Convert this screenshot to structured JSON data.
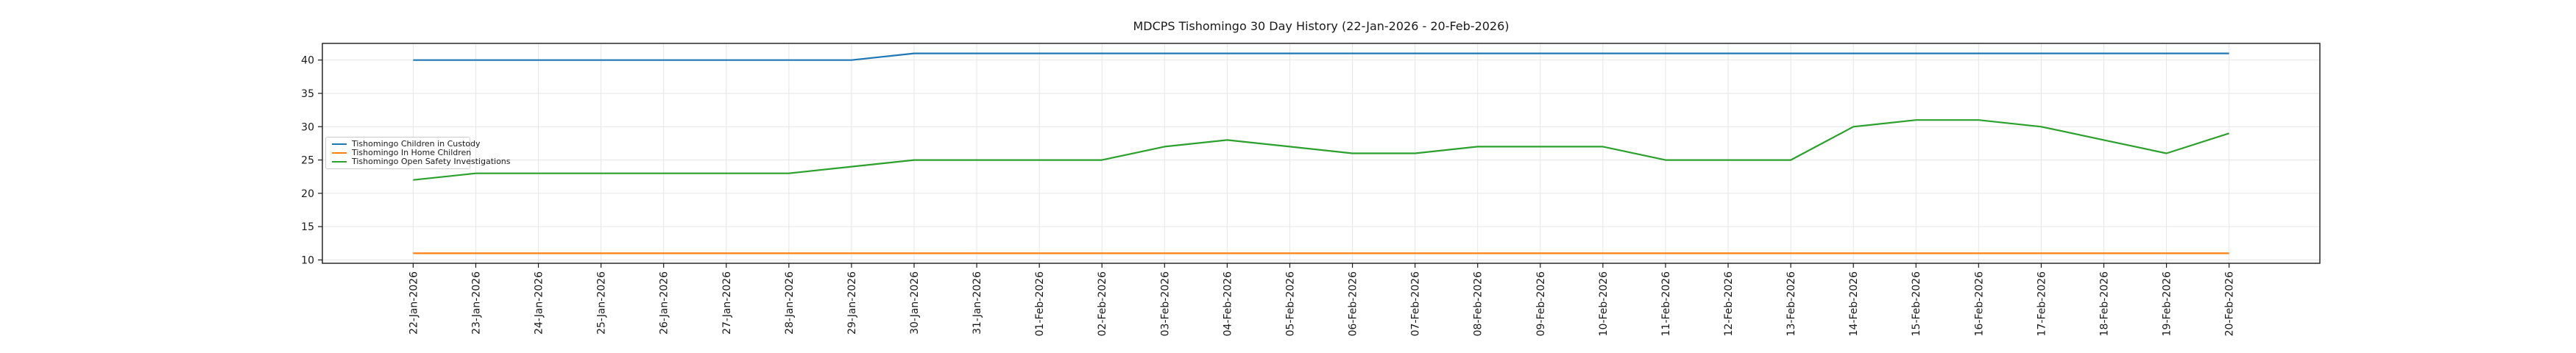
{
  "figure": {
    "title": "MDCPS Tishomingo 30 Day History (22-Jan-2026 - 20-Feb-2026)",
    "background_color": "#ffffff",
    "grid_color": "#e6e6e6",
    "spine_color": "#1a1a1a",
    "tick_label_color": "#1a1a1a"
  },
  "chart_data": {
    "type": "line",
    "title": "MDCPS Tishomingo 30 Day History (22-Jan-2026 - 20-Feb-2026)",
    "xlabel": "",
    "ylabel": "",
    "grid": true,
    "legend_position": "center left",
    "ylim": [
      9.5,
      42.5
    ],
    "yticks": [
      10,
      15,
      20,
      25,
      30,
      35,
      40
    ],
    "categories": [
      "22-Jan-2026",
      "23-Jan-2026",
      "24-Jan-2026",
      "25-Jan-2026",
      "26-Jan-2026",
      "27-Jan-2026",
      "28-Jan-2026",
      "29-Jan-2026",
      "30-Jan-2026",
      "31-Jan-2026",
      "01-Feb-2026",
      "02-Feb-2026",
      "03-Feb-2026",
      "04-Feb-2026",
      "05-Feb-2026",
      "06-Feb-2026",
      "07-Feb-2026",
      "08-Feb-2026",
      "09-Feb-2026",
      "10-Feb-2026",
      "11-Feb-2026",
      "12-Feb-2026",
      "13-Feb-2026",
      "14-Feb-2026",
      "15-Feb-2026",
      "16-Feb-2026",
      "17-Feb-2026",
      "18-Feb-2026",
      "19-Feb-2026",
      "20-Feb-2026"
    ],
    "series": [
      {
        "name": "Tishomingo Children in Custody",
        "color": "#1f77b4",
        "values": [
          40,
          40,
          40,
          40,
          40,
          40,
          40,
          40,
          41,
          41,
          41,
          41,
          41,
          41,
          41,
          41,
          41,
          41,
          41,
          41,
          41,
          41,
          41,
          41,
          41,
          41,
          41,
          41,
          41,
          41
        ]
      },
      {
        "name": "Tishomingo In Home Children",
        "color": "#ff7f0e",
        "values": [
          11,
          11,
          11,
          11,
          11,
          11,
          11,
          11,
          11,
          11,
          11,
          11,
          11,
          11,
          11,
          11,
          11,
          11,
          11,
          11,
          11,
          11,
          11,
          11,
          11,
          11,
          11,
          11,
          11,
          11
        ]
      },
      {
        "name": "Tishomingo Open Safety Investigations",
        "color": "#2ca02c",
        "values": [
          22,
          23,
          23,
          23,
          23,
          23,
          23,
          24,
          25,
          25,
          25,
          25,
          27,
          28,
          27,
          26,
          26,
          27,
          27,
          27,
          25,
          25,
          25,
          30,
          31,
          31,
          30,
          28,
          26,
          29
        ]
      }
    ]
  }
}
